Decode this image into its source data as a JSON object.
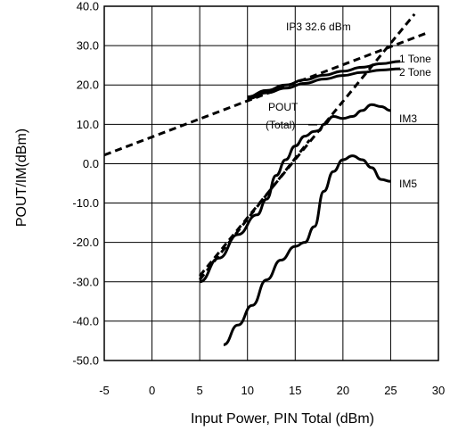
{
  "chart_data": {
    "type": "line",
    "xlabel": "Input Power, PIN Total (dBm)",
    "ylabel": "POUT/IM(dBm)",
    "xlim": [
      -5,
      30
    ],
    "ylim": [
      -50,
      40
    ],
    "xticks": [
      "-5",
      "0",
      "5",
      "10",
      "15",
      "20",
      "25",
      "30"
    ],
    "yticks": [
      "-50.0",
      "-40.0",
      "-30.0",
      "-20.0",
      "-10.0",
      "0.0",
      "10.0",
      "20.0",
      "30.0",
      "40.0"
    ],
    "grid": true,
    "annotations": {
      "ip3": "IP3 32.6 dBm",
      "pout_line1": "POUT",
      "pout_line2": "(Total)",
      "one_tone": "1 Tone",
      "two_tone": "2 Tone",
      "im3": "IM3",
      "im5": "IM5"
    },
    "series": [
      {
        "name": "1 Tone",
        "style": "solid",
        "points": [
          [
            10,
            17
          ],
          [
            12,
            18.6
          ],
          [
            14,
            20
          ],
          [
            16,
            21.3
          ],
          [
            18,
            22.5
          ],
          [
            20,
            23.5
          ],
          [
            22,
            24.5
          ],
          [
            24,
            25.4
          ],
          [
            26,
            26
          ]
        ]
      },
      {
        "name": "2 Tone",
        "style": "solid",
        "points": [
          [
            10,
            16.5
          ],
          [
            12,
            18
          ],
          [
            14,
            19.2
          ],
          [
            16,
            20.4
          ],
          [
            18,
            21.5
          ],
          [
            20,
            22.4
          ],
          [
            22,
            23.2
          ],
          [
            24,
            23.8
          ],
          [
            26,
            24.1
          ]
        ]
      },
      {
        "name": "IM3",
        "style": "solid",
        "points": [
          [
            5,
            -30
          ],
          [
            7,
            -24
          ],
          [
            9,
            -18
          ],
          [
            11,
            -13
          ],
          [
            12,
            -9
          ],
          [
            13,
            -3
          ],
          [
            14,
            1
          ],
          [
            15,
            4.5
          ],
          [
            16,
            7
          ],
          [
            17,
            8.2
          ],
          [
            17.5,
            8.4
          ],
          [
            18,
            10
          ],
          [
            19,
            12
          ],
          [
            20,
            11.5
          ],
          [
            21,
            12
          ],
          [
            22,
            13.5
          ],
          [
            23,
            15
          ],
          [
            24,
            14.5
          ],
          [
            25,
            13.5
          ]
        ]
      },
      {
        "name": "IM5",
        "style": "solid",
        "points": [
          [
            7.5,
            -46
          ],
          [
            9,
            -41
          ],
          [
            10.5,
            -36
          ],
          [
            12,
            -29.5
          ],
          [
            13.5,
            -24.5
          ],
          [
            15,
            -21
          ],
          [
            16,
            -20
          ],
          [
            17,
            -16
          ],
          [
            18,
            -7
          ],
          [
            19,
            -2
          ],
          [
            20,
            1
          ],
          [
            21,
            2
          ],
          [
            22,
            1
          ],
          [
            23,
            -1
          ],
          [
            24,
            -4
          ],
          [
            25,
            -4.5
          ]
        ]
      },
      {
        "name": "POUT extrapolation",
        "style": "dashed",
        "points": [
          [
            -5,
            2.2
          ],
          [
            29,
            33.4
          ]
        ]
      },
      {
        "name": "IM3 extrapolation",
        "style": "dashed",
        "points": [
          [
            5,
            -28.5
          ],
          [
            27.5,
            38
          ]
        ]
      },
      {
        "name": "IM3 extrapolation (short)",
        "style": "dashed",
        "points": [
          [
            5,
            -29.5
          ],
          [
            16.5,
            6
          ]
        ]
      }
    ]
  }
}
